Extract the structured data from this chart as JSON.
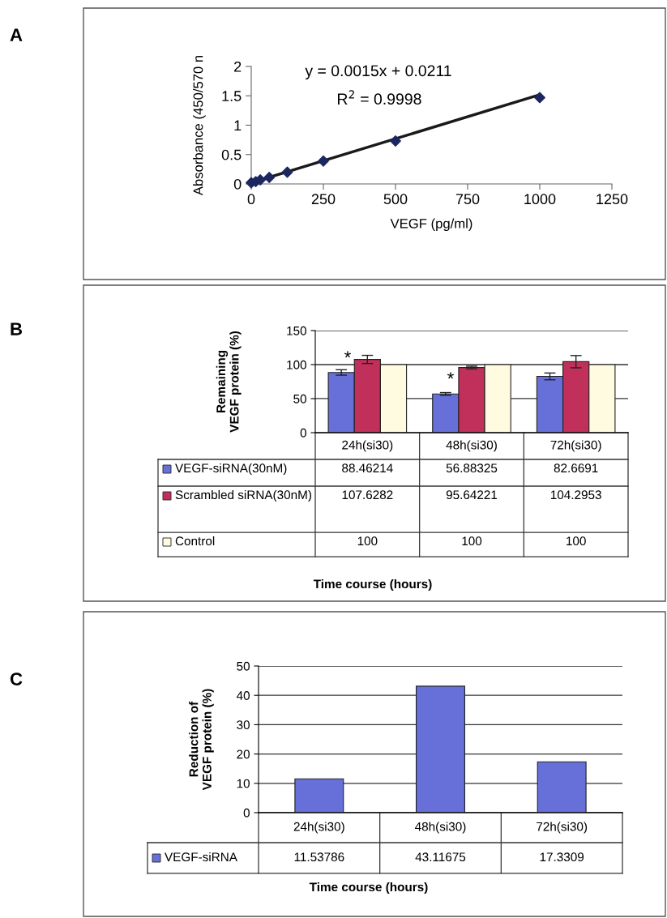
{
  "chart_data": [
    {
      "type": "scatter",
      "xlabel": "VEGF (pg/ml)",
      "ylabel": "Absorbance (450/570 n",
      "xlim": [
        0,
        1250
      ],
      "ylim": [
        0,
        2
      ],
      "xticks": [
        0,
        250,
        500,
        750,
        1000,
        1250
      ],
      "yticks": [
        0,
        0.5,
        1,
        1.5,
        2
      ],
      "annotations": [
        "A",
        "y = 0.0015x + 0.0211",
        "R$^{2}$ = 0.9998"
      ],
      "series": [
        {
          "type": "line",
          "marker": "none",
          "color": "#1a1a1a",
          "x": [
            0,
            1000
          ],
          "values": [
            0.02,
            1.52
          ]
        },
        {
          "type": "scatter",
          "marker": "diamond",
          "color": "#1c2760",
          "x": [
            0,
            15.6,
            31.25,
            62.5,
            125,
            250,
            500,
            1000
          ],
          "values": [
            0.02,
            0.04,
            0.07,
            0.11,
            0.2,
            0.39,
            0.73,
            1.47
          ]
        }
      ]
    },
    {
      "type": "bar",
      "ylabel": "Remaining\nVEGF protein (%)",
      "xlabel": "Time course (hours)",
      "ylim": [
        0,
        150
      ],
      "yticks": [
        0,
        50,
        100,
        150
      ],
      "grid": "y",
      "legend": "bottom",
      "data_labels": true,
      "categories": [
        "24h(si30)",
        "48h(si30)",
        "72h(si30)"
      ],
      "annotations": [
        "B",
        "*",
        "*"
      ],
      "series": [
        {
          "name": "VEGF-siRNA(30nM)",
          "color": "#6670d8",
          "values": [
            88.46214,
            56.88325,
            82.6691
          ],
          "errors": [
            4,
            2,
            5
          ]
        },
        {
          "name": "Scrambled siRNA(30nM)",
          "color": "#c0305a",
          "values": [
            107.6282,
            95.64221,
            104.2953
          ],
          "errors": [
            6,
            2,
            9
          ]
        },
        {
          "name": "Control",
          "color": "#fffbe0",
          "values": [
            100,
            100,
            100
          ]
        }
      ]
    },
    {
      "type": "bar",
      "ylabel": "Reduction of\nVEGF protein (%)",
      "xlabel": "Time course (hours)",
      "ylim": [
        0,
        50
      ],
      "yticks": [
        0,
        10,
        20,
        30,
        40,
        50
      ],
      "grid": "y",
      "legend": "bottom",
      "data_labels": true,
      "categories": [
        "24h(si30)",
        "48h(si30)",
        "72h(si30)"
      ],
      "annotations": [
        "C"
      ],
      "series": [
        {
          "name": "VEGF-siRNA",
          "color": "#6670d8",
          "values": [
            11.53786,
            43.11675,
            17.3309
          ]
        }
      ]
    }
  ]
}
